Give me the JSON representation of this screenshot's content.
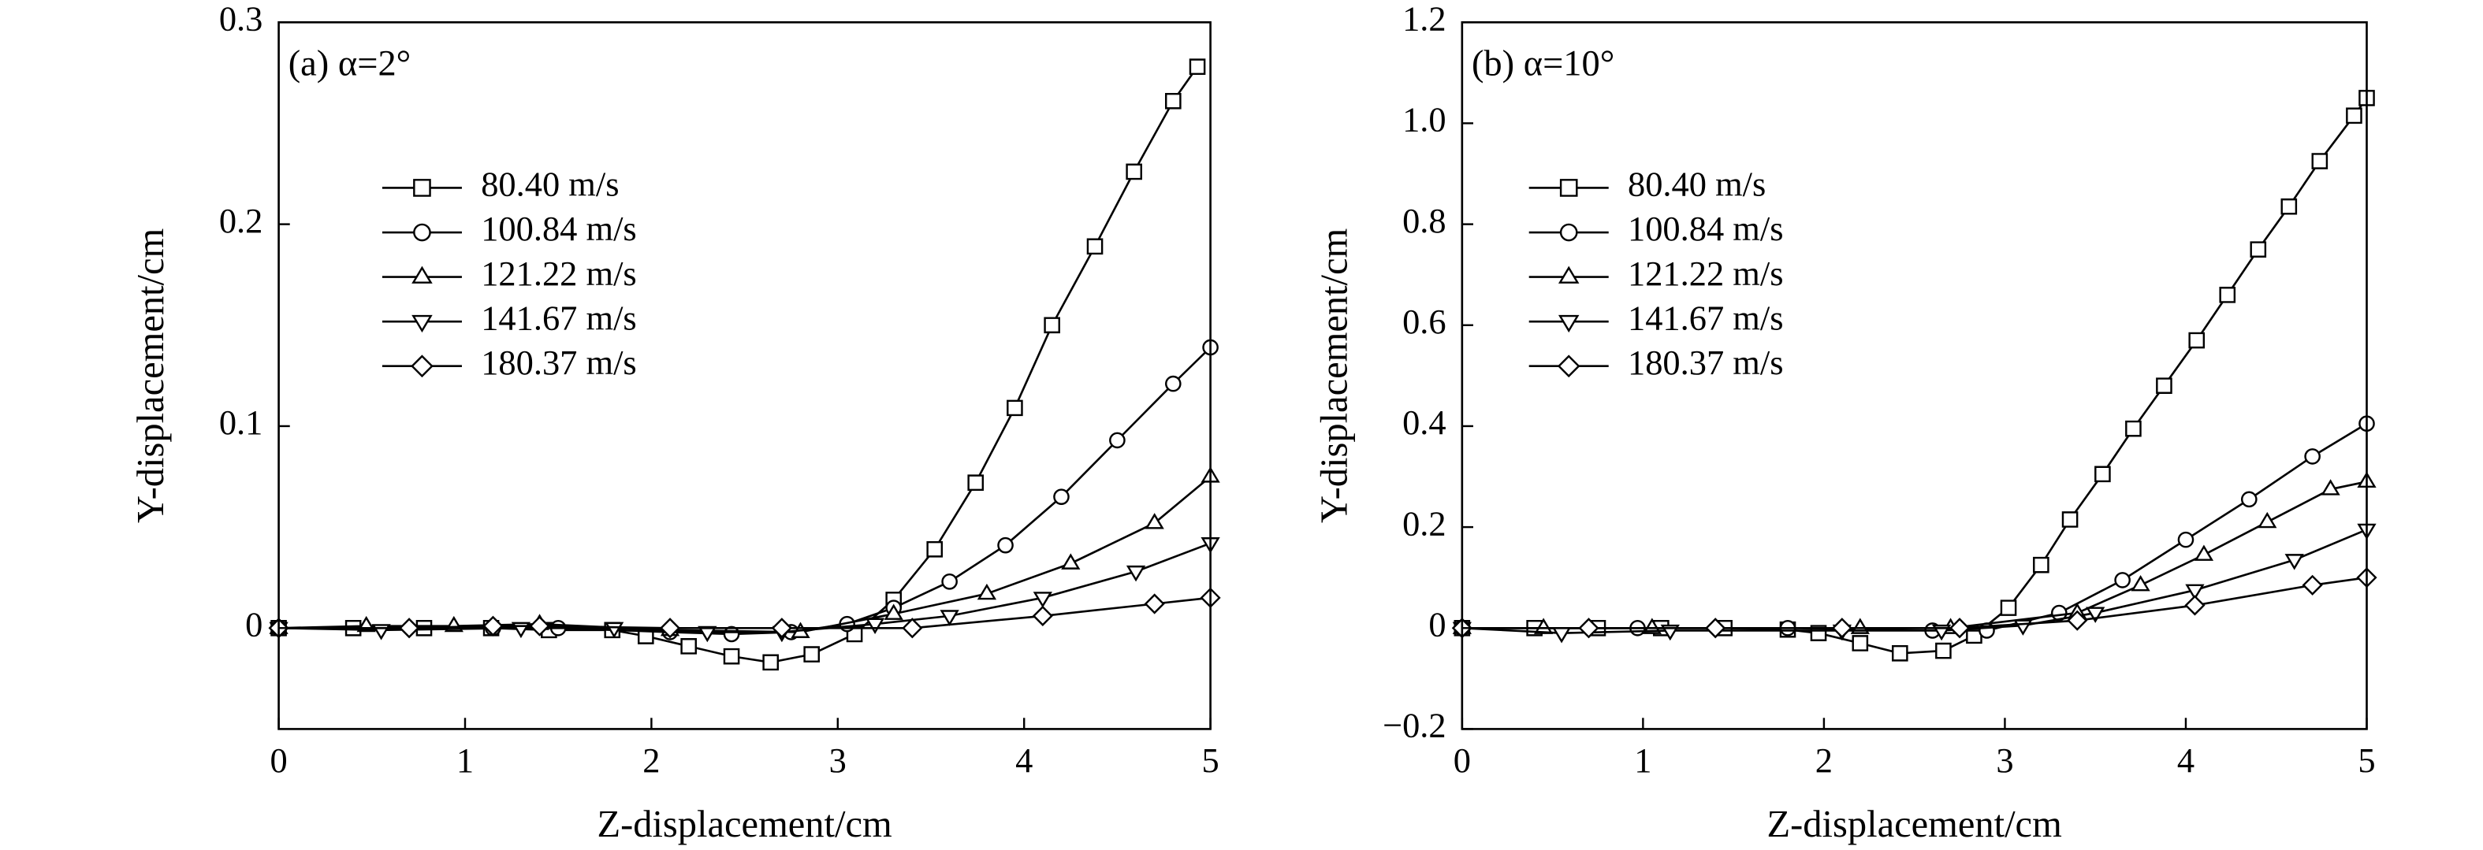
{
  "chart_data": [
    {
      "type": "line",
      "annotation": "(a) α=2°",
      "xlabel": "Z-displacement/cm",
      "ylabel": "Y-displacement/cm",
      "xlim": [
        0,
        5
      ],
      "ylim": [
        -0.05,
        0.3
      ],
      "xticks": [
        0,
        1,
        2,
        3,
        4,
        5
      ],
      "yticks": [
        0,
        0.1,
        0.2,
        0.3
      ],
      "series": [
        {
          "name": "80.40 m/s",
          "marker": "square",
          "color": "#000000",
          "x": [
            0,
            0.4,
            0.78,
            1.14,
            1.45,
            1.79,
            1.97,
            2.2,
            2.43,
            2.64,
            2.86,
            3.09,
            3.3,
            3.52,
            3.74,
            3.95,
            4.15,
            4.38,
            4.59,
            4.8,
            4.93
          ],
          "values": [
            0,
            0,
            0,
            0,
            -0.001,
            -0.001,
            -0.004,
            -0.009,
            -0.014,
            -0.017,
            -0.013,
            -0.003,
            0.014,
            0.039,
            0.072,
            0.109,
            0.15,
            0.189,
            0.226,
            0.261,
            0.278
          ]
        },
        {
          "name": "100.84 m/s",
          "marker": "circle",
          "color": "#000000",
          "x": [
            0,
            1.15,
            1.5,
            2.1,
            2.43,
            2.75,
            3.05,
            3.3,
            3.6,
            3.9,
            4.2,
            4.5,
            4.8,
            5
          ],
          "values": [
            0,
            0,
            0,
            -0.002,
            -0.003,
            -0.002,
            0.002,
            0.01,
            0.023,
            0.041,
            0.065,
            0.093,
            0.121,
            0.139
          ]
        },
        {
          "name": "121.22 m/s",
          "marker": "triangle",
          "color": "#000000",
          "x": [
            0,
            0.47,
            0.94,
            1.4,
            2.1,
            2.8,
            3.3,
            3.8,
            4.25,
            4.7,
            5
          ],
          "values": [
            0,
            0.001,
            0.001,
            0.002,
            -0.001,
            -0.002,
            0.007,
            0.017,
            0.032,
            0.052,
            0.075
          ]
        },
        {
          "name": "141.67 m/s",
          "marker": "invtriangle",
          "color": "#000000",
          "x": [
            0,
            0.55,
            1.3,
            1.8,
            2.3,
            2.7,
            3.2,
            3.6,
            4.1,
            4.6,
            5
          ],
          "values": [
            0,
            -0.001,
            0,
            0,
            -0.002,
            -0.002,
            0.002,
            0.006,
            0.015,
            0.028,
            0.042
          ]
        },
        {
          "name": "180.37 m/s",
          "marker": "diamond",
          "color": "#000000",
          "x": [
            0,
            0.7,
            1.15,
            1.4,
            2.1,
            2.7,
            3.4,
            4.1,
            4.7,
            5
          ],
          "values": [
            0,
            0,
            0.001,
            0.001,
            0,
            0,
            0,
            0.006,
            0.012,
            0.015
          ]
        }
      ]
    },
    {
      "type": "line",
      "annotation": "(b) α=10°",
      "xlabel": "Z-displacement/cm",
      "ylabel": "Y-displacement/cm",
      "xlim": [
        0,
        5
      ],
      "ylim": [
        -0.2,
        1.2
      ],
      "xticks": [
        0,
        1,
        2,
        3,
        4,
        5
      ],
      "yticks": [
        {
          "value": -0.2,
          "label": "−0.2"
        },
        0,
        0.2,
        0.4,
        0.6,
        0.8,
        {
          "value": 1,
          "label": "1.0"
        },
        1.2
      ],
      "series": [
        {
          "name": "80.40 m/s",
          "marker": "square",
          "color": "#000000",
          "x": [
            0,
            0.4,
            0.75,
            1.1,
            1.45,
            1.8,
            1.97,
            2.2,
            2.42,
            2.66,
            2.83,
            3.02,
            3.2,
            3.36,
            3.54,
            3.71,
            3.88,
            4.06,
            4.23,
            4.4,
            4.57,
            4.74,
            4.93,
            5
          ],
          "values": [
            0,
            0,
            0,
            0,
            0,
            -0.003,
            -0.01,
            -0.03,
            -0.05,
            -0.045,
            -0.015,
            0.04,
            0.125,
            0.215,
            0.305,
            0.395,
            0.48,
            0.57,
            0.66,
            0.75,
            0.835,
            0.925,
            1.015,
            1.05
          ]
        },
        {
          "name": "100.84 m/s",
          "marker": "circle",
          "color": "#000000",
          "x": [
            0,
            0.97,
            1.8,
            2.6,
            2.9,
            3.3,
            3.65,
            4.0,
            4.35,
            4.7,
            5
          ],
          "values": [
            0,
            0,
            0,
            -0.005,
            -0.005,
            0.03,
            0.095,
            0.175,
            0.255,
            0.34,
            0.405
          ]
        },
        {
          "name": "121.22 m/s",
          "marker": "triangle",
          "color": "#000000",
          "x": [
            0,
            0.45,
            1.05,
            2.2,
            2.7,
            3.4,
            3.75,
            4.1,
            4.45,
            4.8,
            5
          ],
          "values": [
            0,
            0,
            0,
            0,
            0,
            0.03,
            0.085,
            0.145,
            0.21,
            0.275,
            0.29
          ]
        },
        {
          "name": "141.67 m/s",
          "marker": "invtriangle",
          "color": "#000000",
          "x": [
            0,
            0.55,
            1.15,
            2.1,
            2.65,
            3.1,
            3.5,
            4.05,
            4.6,
            5
          ],
          "values": [
            0,
            -0.01,
            -0.005,
            -0.005,
            -0.005,
            0.005,
            0.03,
            0.075,
            0.135,
            0.195
          ]
        },
        {
          "name": "180.37 m/s",
          "marker": "diamond",
          "color": "#000000",
          "x": [
            0,
            0.7,
            1.4,
            2.1,
            2.75,
            3.4,
            4.05,
            4.7,
            5
          ],
          "values": [
            0,
            0,
            0,
            0,
            0,
            0.015,
            0.045,
            0.085,
            0.1
          ]
        }
      ]
    }
  ]
}
